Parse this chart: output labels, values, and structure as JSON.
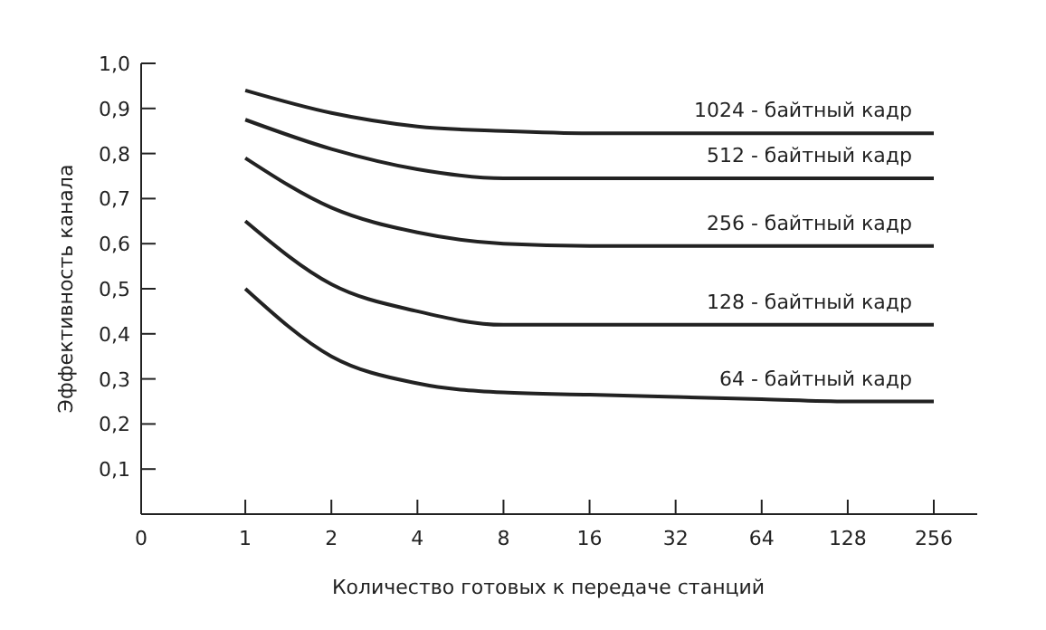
{
  "chart_data": {
    "type": "line",
    "xlabel": "Количество готовых к передаче станций",
    "ylabel": "Эффективность канала",
    "categories": [
      "0",
      "1",
      "2",
      "4",
      "8",
      "16",
      "32",
      "64",
      "128",
      "256"
    ],
    "ylim": [
      0,
      1
    ],
    "yticks": [
      {
        "value": 0.1,
        "label": "0,1"
      },
      {
        "value": 0.2,
        "label": "0,2"
      },
      {
        "value": 0.3,
        "label": "0,3"
      },
      {
        "value": 0.4,
        "label": "0,4"
      },
      {
        "value": 0.5,
        "label": "0,5"
      },
      {
        "value": 0.6,
        "label": "0,6"
      },
      {
        "value": 0.7,
        "label": "0,7"
      },
      {
        "value": 0.8,
        "label": "0,8"
      },
      {
        "value": 0.9,
        "label": "0,9"
      },
      {
        "value": 1,
        "label": "1,0"
      }
    ],
    "grid": false,
    "marker": "none",
    "line_style": "solid",
    "series": [
      {
        "name": "1024 - байтный кадр",
        "color": "#222222",
        "values": [
          null,
          0.94,
          0.89,
          0.86,
          0.85,
          0.845,
          0.845,
          0.845,
          0.845,
          0.845
        ]
      },
      {
        "name": "512 - байтный кадр",
        "color": "#222222",
        "values": [
          null,
          0.875,
          0.81,
          0.765,
          0.745,
          0.745,
          0.745,
          0.745,
          0.745,
          0.745
        ]
      },
      {
        "name": "256 - байтный кадр",
        "color": "#222222",
        "values": [
          null,
          0.79,
          0.68,
          0.625,
          0.6,
          0.595,
          0.595,
          0.595,
          0.595,
          0.595
        ]
      },
      {
        "name": "128 - байтный кадр",
        "color": "#222222",
        "values": [
          null,
          0.65,
          0.51,
          0.45,
          0.42,
          0.42,
          0.42,
          0.42,
          0.42,
          0.42
        ]
      },
      {
        "name": "64 - байтный кадр",
        "color": "#222222",
        "values": [
          null,
          0.5,
          0.35,
          0.29,
          0.27,
          0.265,
          0.26,
          0.255,
          0.25,
          0.25
        ]
      }
    ]
  }
}
